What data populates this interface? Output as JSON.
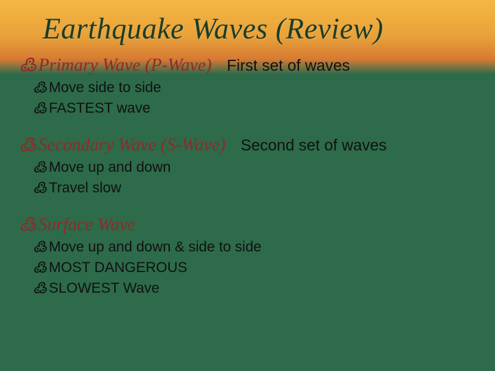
{
  "title": "Earthquake Waves (Review)",
  "sections": [
    {
      "heading": "Primary Wave (P-Wave)",
      "annotation": "First set of waves",
      "items": [
        "Move side to side",
        "FASTEST wave"
      ]
    },
    {
      "heading": "Secondary Wave (S-Wave)",
      "annotation": "Second set of waves",
      "items": [
        "Move up and down",
        "Travel slow"
      ]
    },
    {
      "heading": "Surface Wave",
      "annotation": "",
      "items": [
        "Move up and down & side to side",
        "MOST DANGEROUS",
        "SLOWEST Wave"
      ]
    }
  ],
  "bullet_glyph": "߷",
  "colors": {
    "heading": "#8f2a2a",
    "body": "#111111",
    "bg_top": "#f5b742",
    "bg_bottom": "#2d6b4a"
  },
  "fontsize": {
    "title": 43,
    "heading": 26,
    "annotation": 23,
    "item": 21
  }
}
